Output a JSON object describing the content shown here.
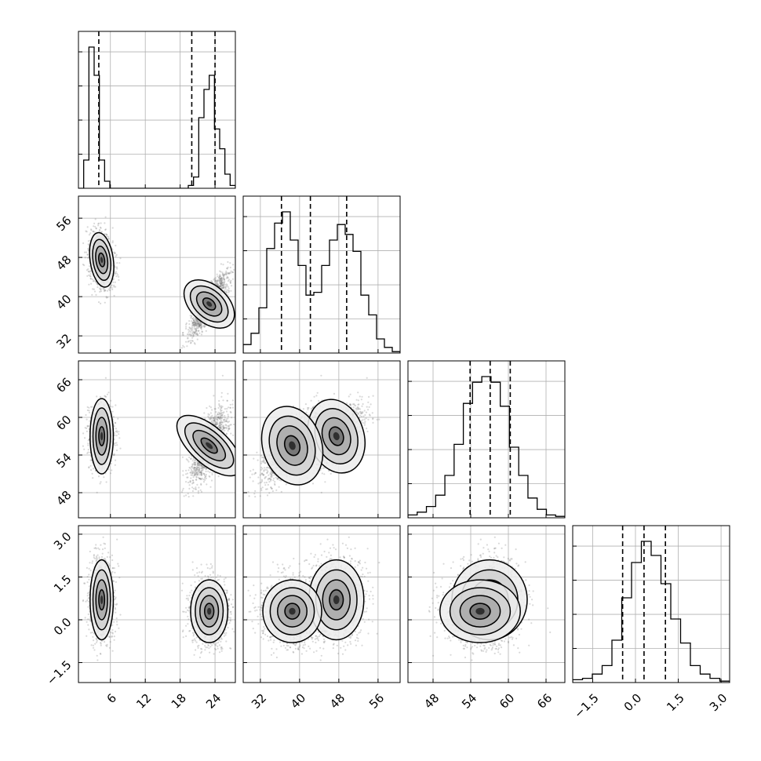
{
  "chart_data": {
    "type": "corner",
    "n_params": 4,
    "params": [
      {
        "ticks": [
          6,
          12,
          18,
          24
        ],
        "range": [
          0.5,
          27.5
        ]
      },
      {
        "ticks": [
          32,
          40,
          48,
          56
        ],
        "range": [
          28.5,
          60.5
        ]
      },
      {
        "ticks": [
          48,
          54,
          60,
          66
        ],
        "range": [
          44,
          69
        ]
      },
      {
        "ticks": [
          -1.5,
          0.0,
          1.5,
          3.0
        ],
        "range": [
          -2.2,
          3.3
        ]
      }
    ],
    "tick_text": [
      [
        "6",
        "12",
        "18",
        "24"
      ],
      [
        "32",
        "40",
        "48",
        "56"
      ],
      [
        "48",
        "54",
        "60",
        "66"
      ],
      [
        "−1.5",
        "0.0",
        "1.5",
        "3.0"
      ]
    ],
    "quantiles": [
      [
        4.0,
        20.0,
        24.0
      ],
      [
        36.3,
        42.2,
        49.6
      ],
      [
        53.9,
        57.1,
        60.3
      ],
      [
        -0.45,
        0.3,
        1.05
      ]
    ],
    "histograms": [
      [
        0,
        0.2,
        1.0,
        0.8,
        0.2,
        0.05,
        0,
        0,
        0,
        0,
        0,
        0,
        0,
        0,
        0,
        0,
        0,
        0,
        0,
        0,
        0,
        0.02,
        0.08,
        0.5,
        0.7,
        0.8,
        0.42,
        0.28,
        0.1,
        0.02
      ],
      [
        0.06,
        0.14,
        0.32,
        0.74,
        0.92,
        1.0,
        0.8,
        0.62,
        0.41,
        0.43,
        0.62,
        0.8,
        0.91,
        0.84,
        0.72,
        0.41,
        0.27,
        0.1,
        0.04,
        0.01
      ],
      [
        0.02,
        0.04,
        0.08,
        0.16,
        0.3,
        0.52,
        0.81,
        0.96,
        1.0,
        0.96,
        0.79,
        0.5,
        0.3,
        0.14,
        0.06,
        0.02,
        0.01
      ],
      [
        0.02,
        0.03,
        0.06,
        0.12,
        0.3,
        0.6,
        0.85,
        1.0,
        0.9,
        0.7,
        0.45,
        0.28,
        0.12,
        0.06,
        0.03,
        0.01
      ]
    ],
    "clusters": [
      {
        "means": [
          4.5,
          47.5,
          57.0,
          0.7
        ],
        "sds": [
          1.0,
          2.8,
          3.0,
          0.7
        ]
      },
      {
        "means": [
          23.0,
          38.5,
          55.5,
          0.3
        ],
        "sds": [
          1.6,
          3.0,
          3.2,
          0.55
        ]
      }
    ],
    "grid": true
  }
}
